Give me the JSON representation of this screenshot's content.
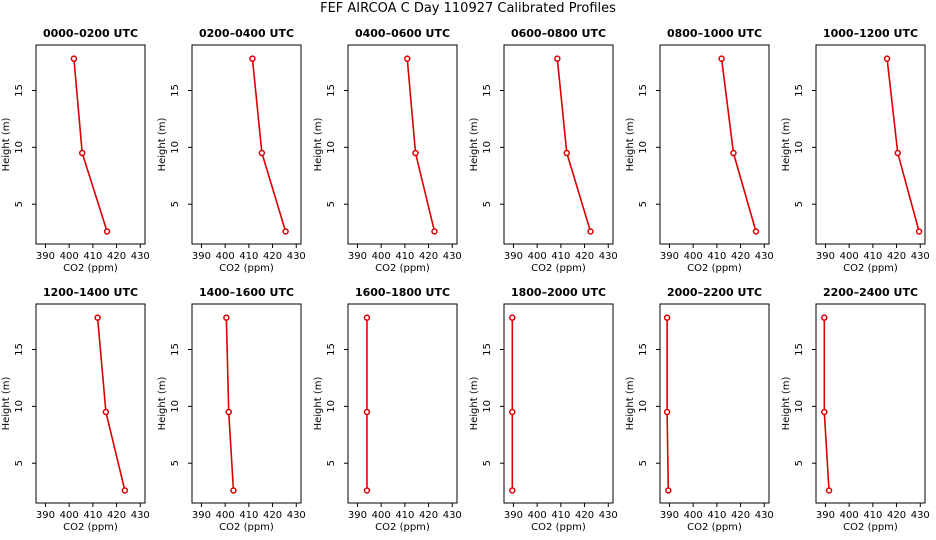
{
  "title": "FEF AIRCOA C  Day 110927  Calibrated Profiles",
  "chart_data": [
    {
      "type": "line",
      "title": "0000–0200 UTC",
      "xlabel": "CO2 (ppm)",
      "ylabel": "Height (m)",
      "xlim": [
        386,
        432
      ],
      "ylim": [
        1.5,
        19
      ],
      "xticks": [
        390,
        400,
        410,
        420,
        430
      ],
      "yticks": [
        5,
        10,
        15
      ],
      "series": [
        {
          "x": [
            402.0,
            405.5,
            416.0
          ],
          "y": [
            17.8,
            9.5,
            2.6
          ]
        }
      ]
    },
    {
      "type": "line",
      "title": "0200–0400 UTC",
      "xlabel": "CO2 (ppm)",
      "ylabel": "Height (m)",
      "xlim": [
        386,
        432
      ],
      "ylim": [
        1.5,
        19
      ],
      "xticks": [
        390,
        400,
        410,
        420,
        430
      ],
      "yticks": [
        5,
        10,
        15
      ],
      "series": [
        {
          "x": [
            411.5,
            415.5,
            425.5
          ],
          "y": [
            17.8,
            9.5,
            2.6
          ]
        }
      ]
    },
    {
      "type": "line",
      "title": "0400–0600 UTC",
      "xlabel": "CO2 (ppm)",
      "ylabel": "Height (m)",
      "xlim": [
        386,
        432
      ],
      "ylim": [
        1.5,
        19
      ],
      "xticks": [
        390,
        400,
        410,
        420,
        430
      ],
      "yticks": [
        5,
        10,
        15
      ],
      "series": [
        {
          "x": [
            411.0,
            414.5,
            422.5
          ],
          "y": [
            17.8,
            9.5,
            2.6
          ]
        }
      ]
    },
    {
      "type": "line",
      "title": "0600–0800 UTC",
      "xlabel": "CO2 (ppm)",
      "ylabel": "Height (m)",
      "xlim": [
        386,
        432
      ],
      "ylim": [
        1.5,
        19
      ],
      "xticks": [
        390,
        400,
        410,
        420,
        430
      ],
      "yticks": [
        5,
        10,
        15
      ],
      "series": [
        {
          "x": [
            408.5,
            412.5,
            422.5
          ],
          "y": [
            17.8,
            9.5,
            2.6
          ]
        }
      ]
    },
    {
      "type": "line",
      "title": "0800–1000 UTC",
      "xlabel": "CO2 (ppm)",
      "ylabel": "Height (m)",
      "xlim": [
        386,
        432
      ],
      "ylim": [
        1.5,
        19
      ],
      "xticks": [
        390,
        400,
        410,
        420,
        430
      ],
      "yticks": [
        5,
        10,
        15
      ],
      "series": [
        {
          "x": [
            412.0,
            417.0,
            426.5
          ],
          "y": [
            17.8,
            9.5,
            2.6
          ]
        }
      ]
    },
    {
      "type": "line",
      "title": "1000–1200 UTC",
      "xlabel": "CO2 (ppm)",
      "ylabel": "Height (m)",
      "xlim": [
        386,
        432
      ],
      "ylim": [
        1.5,
        19
      ],
      "xticks": [
        390,
        400,
        410,
        420,
        430
      ],
      "yticks": [
        5,
        10,
        15
      ],
      "series": [
        {
          "x": [
            416.0,
            420.5,
            429.5
          ],
          "y": [
            17.8,
            9.5,
            2.6
          ]
        }
      ]
    },
    {
      "type": "line",
      "title": "1200–1400 UTC",
      "xlabel": "CO2 (ppm)",
      "ylabel": "Height (m)",
      "xlim": [
        386,
        432
      ],
      "ylim": [
        1.5,
        19
      ],
      "xticks": [
        390,
        400,
        410,
        420,
        430
      ],
      "yticks": [
        5,
        10,
        15
      ],
      "series": [
        {
          "x": [
            412.0,
            415.5,
            423.5
          ],
          "y": [
            17.8,
            9.5,
            2.6
          ]
        }
      ]
    },
    {
      "type": "line",
      "title": "1400–1600 UTC",
      "xlabel": "CO2 (ppm)",
      "ylabel": "Height (m)",
      "xlim": [
        386,
        432
      ],
      "ylim": [
        1.5,
        19
      ],
      "xticks": [
        390,
        400,
        410,
        420,
        430
      ],
      "yticks": [
        5,
        10,
        15
      ],
      "series": [
        {
          "x": [
            400.5,
            401.5,
            403.5
          ],
          "y": [
            17.8,
            9.5,
            2.6
          ]
        }
      ]
    },
    {
      "type": "line",
      "title": "1600–1800 UTC",
      "xlabel": "CO2 (ppm)",
      "ylabel": "Height (m)",
      "xlim": [
        386,
        432
      ],
      "ylim": [
        1.5,
        19
      ],
      "xticks": [
        390,
        400,
        410,
        420,
        430
      ],
      "yticks": [
        5,
        10,
        15
      ],
      "series": [
        {
          "x": [
            394.0,
            394.0,
            394.0
          ],
          "y": [
            17.8,
            9.5,
            2.6
          ]
        }
      ]
    },
    {
      "type": "line",
      "title": "1800–2000 UTC",
      "xlabel": "CO2 (ppm)",
      "ylabel": "Height (m)",
      "xlim": [
        386,
        432
      ],
      "ylim": [
        1.5,
        19
      ],
      "xticks": [
        390,
        400,
        410,
        420,
        430
      ],
      "yticks": [
        5,
        10,
        15
      ],
      "series": [
        {
          "x": [
            389.5,
            389.5,
            389.5
          ],
          "y": [
            17.8,
            9.5,
            2.6
          ]
        }
      ]
    },
    {
      "type": "line",
      "title": "2000–2200 UTC",
      "xlabel": "CO2 (ppm)",
      "ylabel": "Height (m)",
      "xlim": [
        386,
        432
      ],
      "ylim": [
        1.5,
        19
      ],
      "xticks": [
        390,
        400,
        410,
        420,
        430
      ],
      "yticks": [
        5,
        10,
        15
      ],
      "series": [
        {
          "x": [
            389.0,
            389.0,
            389.5
          ],
          "y": [
            17.8,
            9.5,
            2.6
          ]
        }
      ]
    },
    {
      "type": "line",
      "title": "2200–2400 UTC",
      "xlabel": "CO2 (ppm)",
      "ylabel": "Height (m)",
      "xlim": [
        386,
        432
      ],
      "ylim": [
        1.5,
        19
      ],
      "xticks": [
        390,
        400,
        410,
        420,
        430
      ],
      "yticks": [
        5,
        10,
        15
      ],
      "series": [
        {
          "x": [
            389.5,
            389.5,
            391.5
          ],
          "y": [
            17.8,
            9.5,
            2.6
          ]
        }
      ]
    }
  ],
  "colors": {
    "series": "#dd0000",
    "axis": "#000000"
  }
}
